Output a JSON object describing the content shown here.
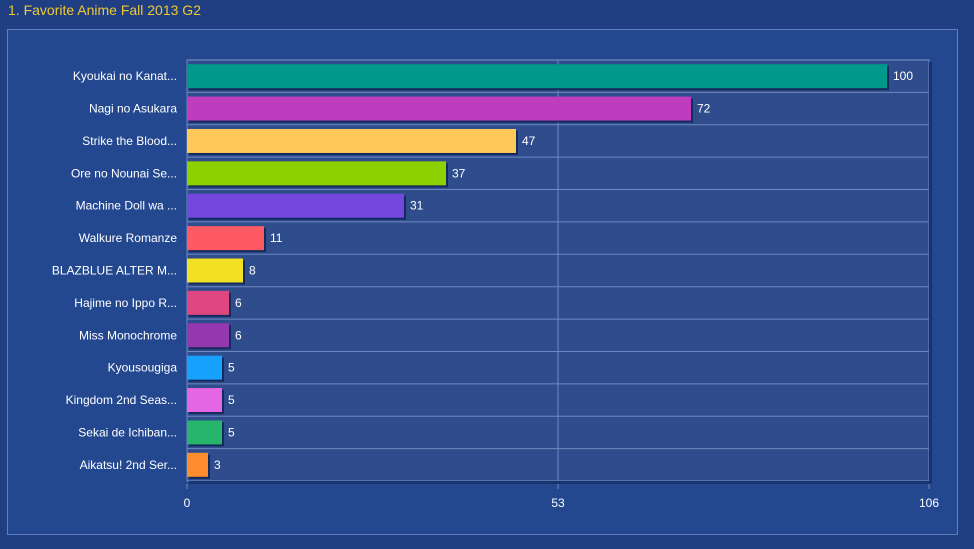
{
  "header": {
    "title": "1. Favorite Anime Fall 2013 G2"
  },
  "chart_data": {
    "type": "bar",
    "orientation": "horizontal",
    "title": "1. Favorite Anime Fall 2013 G2",
    "categories": [
      "Kyoukai no Kanat...",
      "Nagi no Asukara",
      "Strike the Blood...",
      "Ore no Nounai Se...",
      "Machine Doll wa ...",
      "Walkure Romanze",
      "BLAZBLUE ALTER M...",
      "Hajime no Ippo R...",
      "Miss Monochrome",
      "Kyousougiga",
      "Kingdom 2nd Seas...",
      "Sekai de Ichiban...",
      "Aikatsu! 2nd Ser..."
    ],
    "values": [
      100,
      72,
      47,
      37,
      31,
      11,
      8,
      6,
      6,
      5,
      5,
      5,
      3
    ],
    "colors": [
      "#00998c",
      "#bf3cbf",
      "#ffc85a",
      "#8ed100",
      "#7447df",
      "#ff5a64",
      "#f2e024",
      "#e04680",
      "#9438b0",
      "#17a1ff",
      "#e466e4",
      "#26b56a",
      "#ff8c2d"
    ],
    "x_ticks": [
      "0",
      "53",
      "106"
    ],
    "xlim": [
      0,
      106
    ],
    "grid": true,
    "xlabel": "",
    "ylabel": ""
  }
}
